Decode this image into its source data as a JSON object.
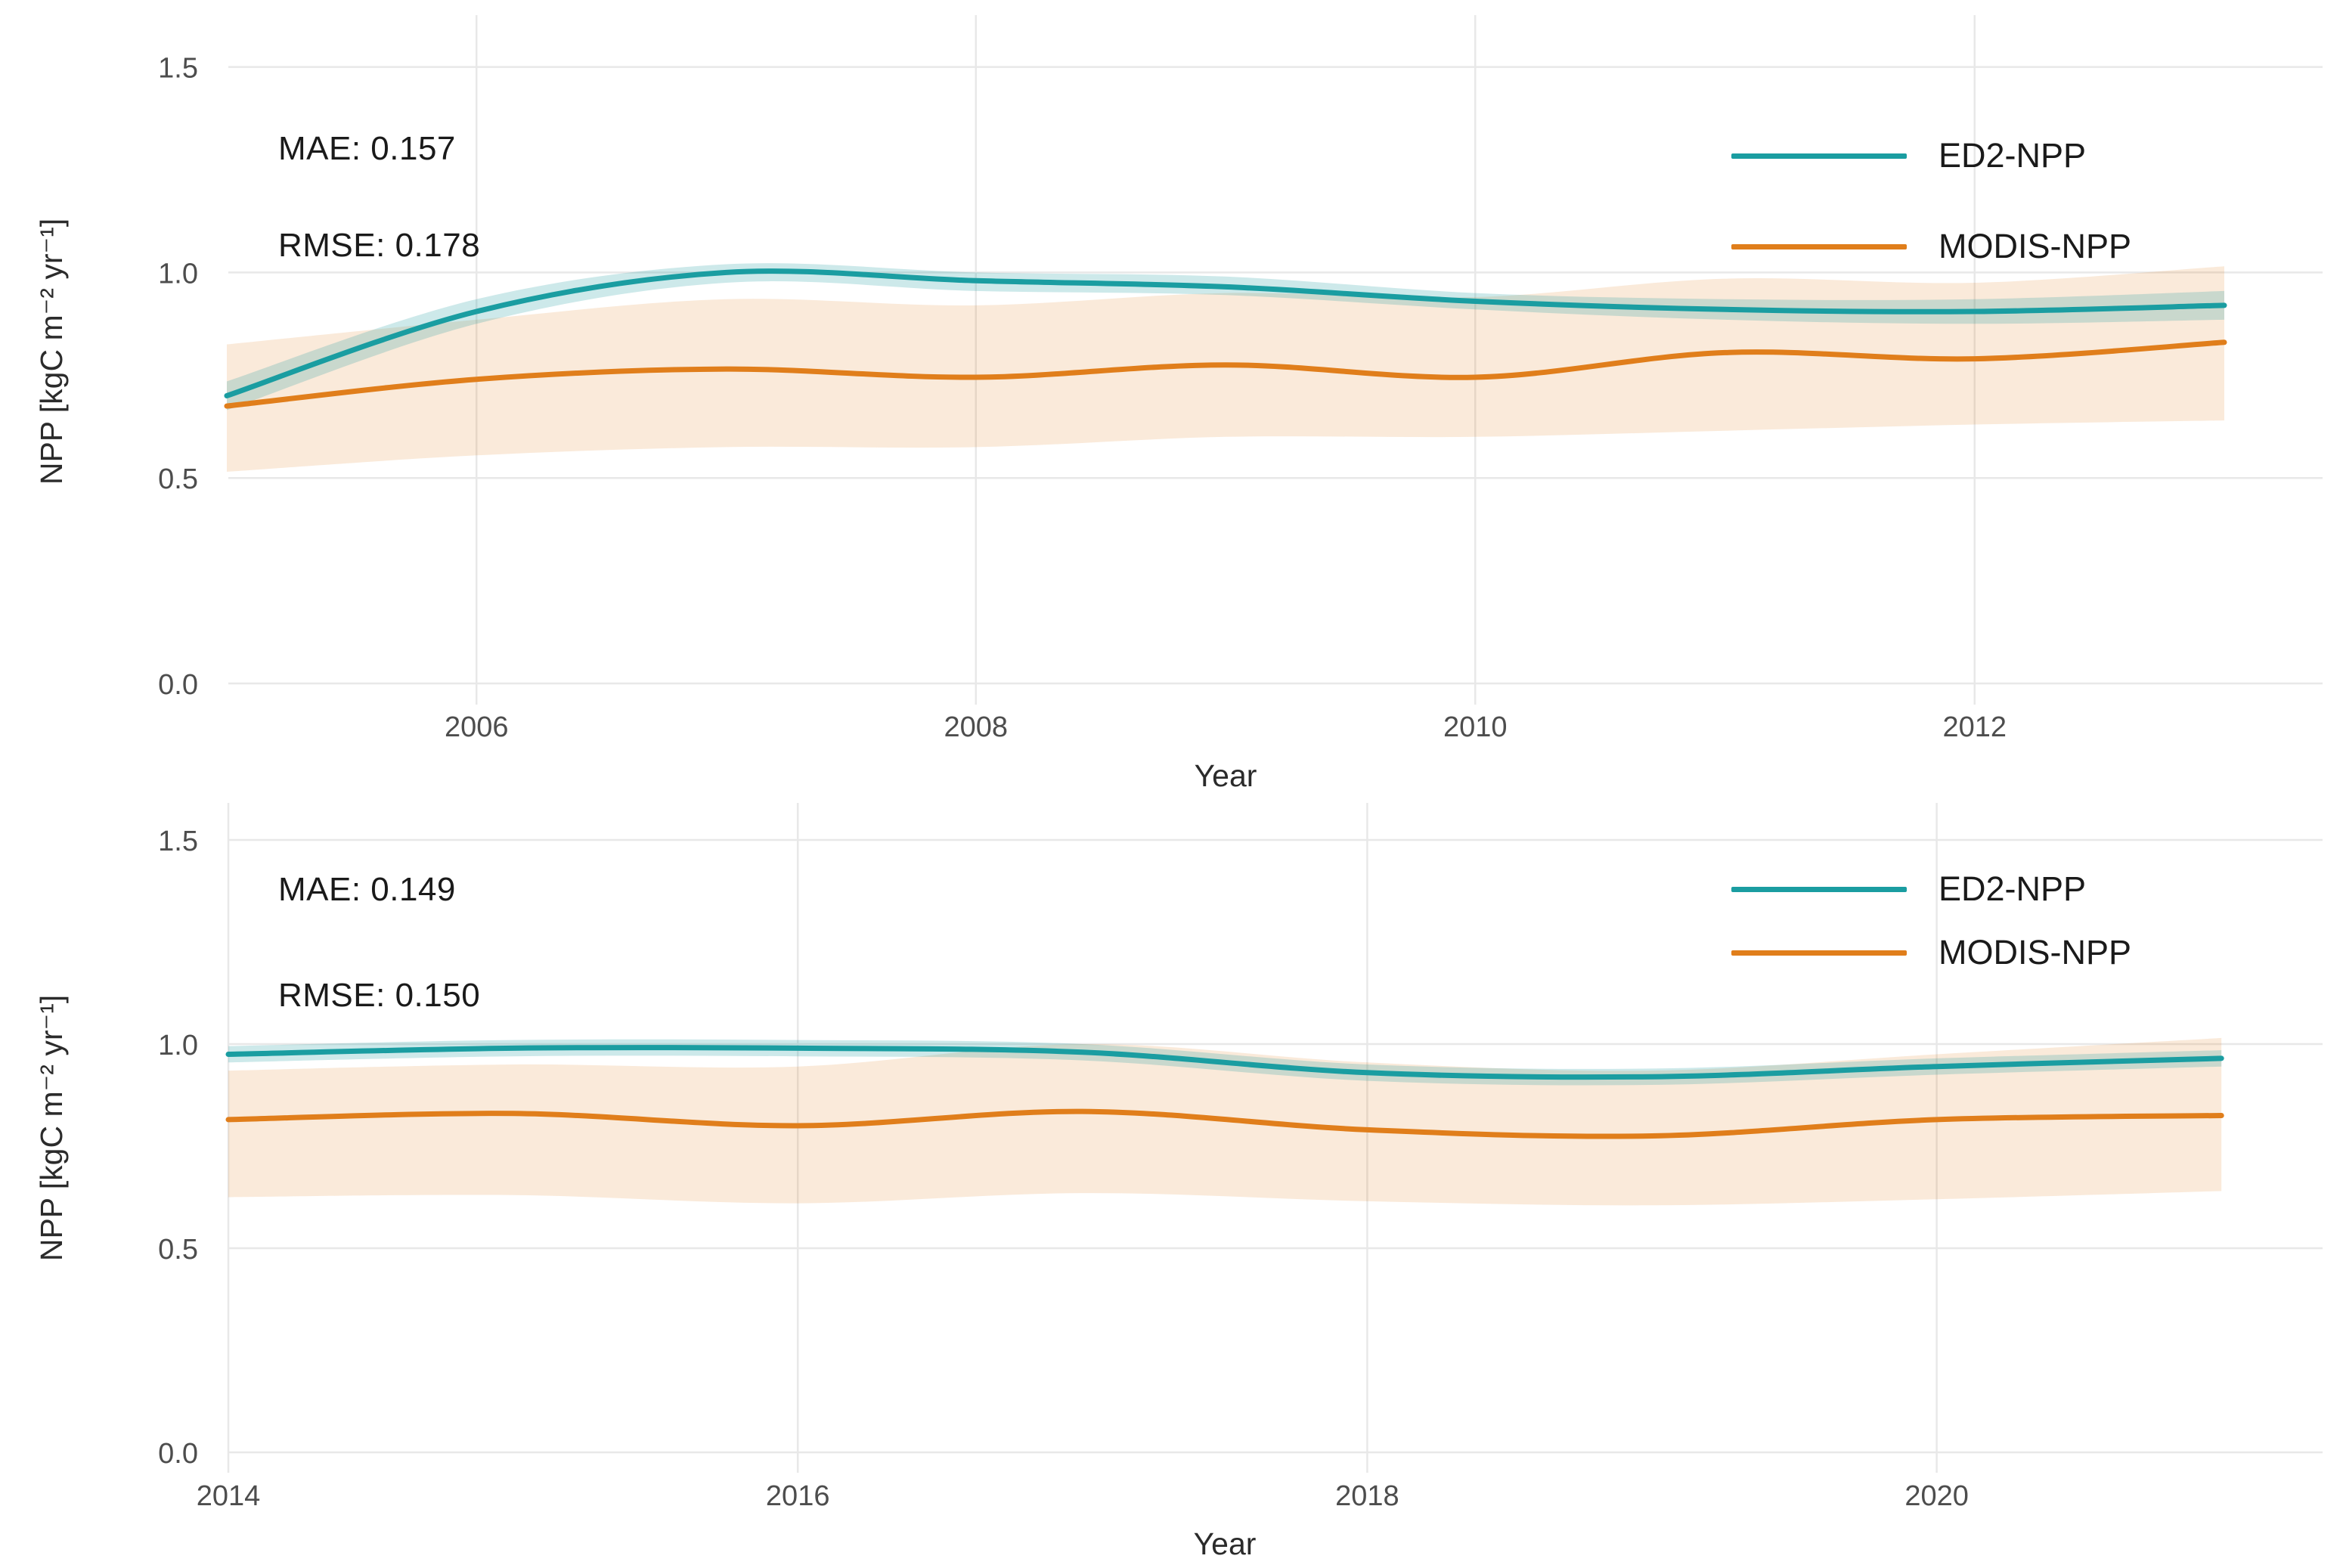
{
  "figure": {
    "background": "#ffffff",
    "grid_color": "#e8e8e8",
    "tick_text_color": "#4d4d4d",
    "axis_title_color": "#2b2b2b",
    "annotation_text_color": "#1a1a1a"
  },
  "chart_data": [
    {
      "type": "line",
      "panel": "top",
      "xlabel": "Year",
      "ylabel": "NPP [kgC m⁻² yr⁻¹]",
      "grid": true,
      "legend_position": "inside-top-right",
      "annotations": {
        "mae": "MAE: 0.157",
        "rmse": "RMSE: 0.178"
      },
      "x": [
        2005,
        2006,
        2007,
        2008,
        2009,
        2010,
        2011,
        2012,
        2013
      ],
      "x_ticks": [
        {
          "v": 2006,
          "label": "2006"
        },
        {
          "v": 2008,
          "label": "2008"
        },
        {
          "v": 2010,
          "label": "2010"
        },
        {
          "v": 2012,
          "label": "2012"
        }
      ],
      "y_ticks": [
        {
          "v": 0.0,
          "label": "0.0"
        },
        {
          "v": 0.5,
          "label": "0.5"
        },
        {
          "v": 1.0,
          "label": "1.0"
        },
        {
          "v": 1.5,
          "label": "1.5"
        }
      ],
      "ylim": [
        0.0,
        1.5
      ],
      "series": [
        {
          "name": "MODIS-NPP",
          "color": "#e07e1b",
          "band_color": "rgba(224,126,27,0.16)",
          "values": [
            0.675,
            0.74,
            0.765,
            0.745,
            0.775,
            0.745,
            0.805,
            0.79,
            0.83
          ],
          "band_lower": [
            0.515,
            0.555,
            0.575,
            0.575,
            0.6,
            0.6,
            0.615,
            0.63,
            0.64
          ],
          "band_upper": [
            0.825,
            0.885,
            0.935,
            0.92,
            0.95,
            0.94,
            0.985,
            0.975,
            1.015
          ]
        },
        {
          "name": "ED2-NPP",
          "color": "#1a9da1",
          "band_color": "rgba(26,157,161,0.22)",
          "values": [
            0.7,
            0.905,
            1.0,
            0.98,
            0.965,
            0.93,
            0.91,
            0.905,
            0.92
          ],
          "band_lower": [
            0.665,
            0.875,
            0.975,
            0.955,
            0.945,
            0.91,
            0.885,
            0.875,
            0.885
          ],
          "band_upper": [
            0.735,
            0.935,
            1.02,
            1.0,
            0.99,
            0.95,
            0.935,
            0.935,
            0.955
          ]
        }
      ]
    },
    {
      "type": "line",
      "panel": "bottom",
      "xlabel": "Year",
      "ylabel": "NPP [kgC m⁻² yr⁻¹]",
      "grid": true,
      "legend_position": "inside-top-right",
      "annotations": {
        "mae": "MAE: 0.149",
        "rmse": "RMSE: 0.150"
      },
      "x": [
        2014,
        2015,
        2016,
        2017,
        2018,
        2019,
        2020,
        2021
      ],
      "x_ticks": [
        {
          "v": 2014,
          "label": "2014"
        },
        {
          "v": 2016,
          "label": "2016"
        },
        {
          "v": 2018,
          "label": "2018"
        },
        {
          "v": 2020,
          "label": "2020"
        }
      ],
      "y_ticks": [
        {
          "v": 0.0,
          "label": "0.0"
        },
        {
          "v": 0.5,
          "label": "0.5"
        },
        {
          "v": 1.0,
          "label": "1.0"
        },
        {
          "v": 1.5,
          "label": "1.5"
        }
      ],
      "ylim": [
        0.0,
        1.5
      ],
      "series": [
        {
          "name": "MODIS-NPP",
          "color": "#e07e1b",
          "band_color": "rgba(224,126,27,0.16)",
          "values": [
            0.815,
            0.83,
            0.8,
            0.835,
            0.79,
            0.775,
            0.815,
            0.825
          ],
          "band_lower": [
            0.625,
            0.63,
            0.61,
            0.635,
            0.615,
            0.605,
            0.62,
            0.64
          ],
          "band_upper": [
            0.935,
            0.95,
            0.945,
            1.0,
            0.955,
            0.935,
            0.975,
            1.015
          ]
        },
        {
          "name": "ED2-NPP",
          "color": "#1a9da1",
          "band_color": "rgba(26,157,161,0.22)",
          "values": [
            0.975,
            0.99,
            0.99,
            0.98,
            0.93,
            0.92,
            0.945,
            0.965
          ],
          "band_lower": [
            0.955,
            0.97,
            0.97,
            0.96,
            0.91,
            0.9,
            0.925,
            0.945
          ],
          "band_upper": [
            0.995,
            1.01,
            1.01,
            1.0,
            0.95,
            0.94,
            0.965,
            0.985
          ]
        }
      ]
    }
  ]
}
